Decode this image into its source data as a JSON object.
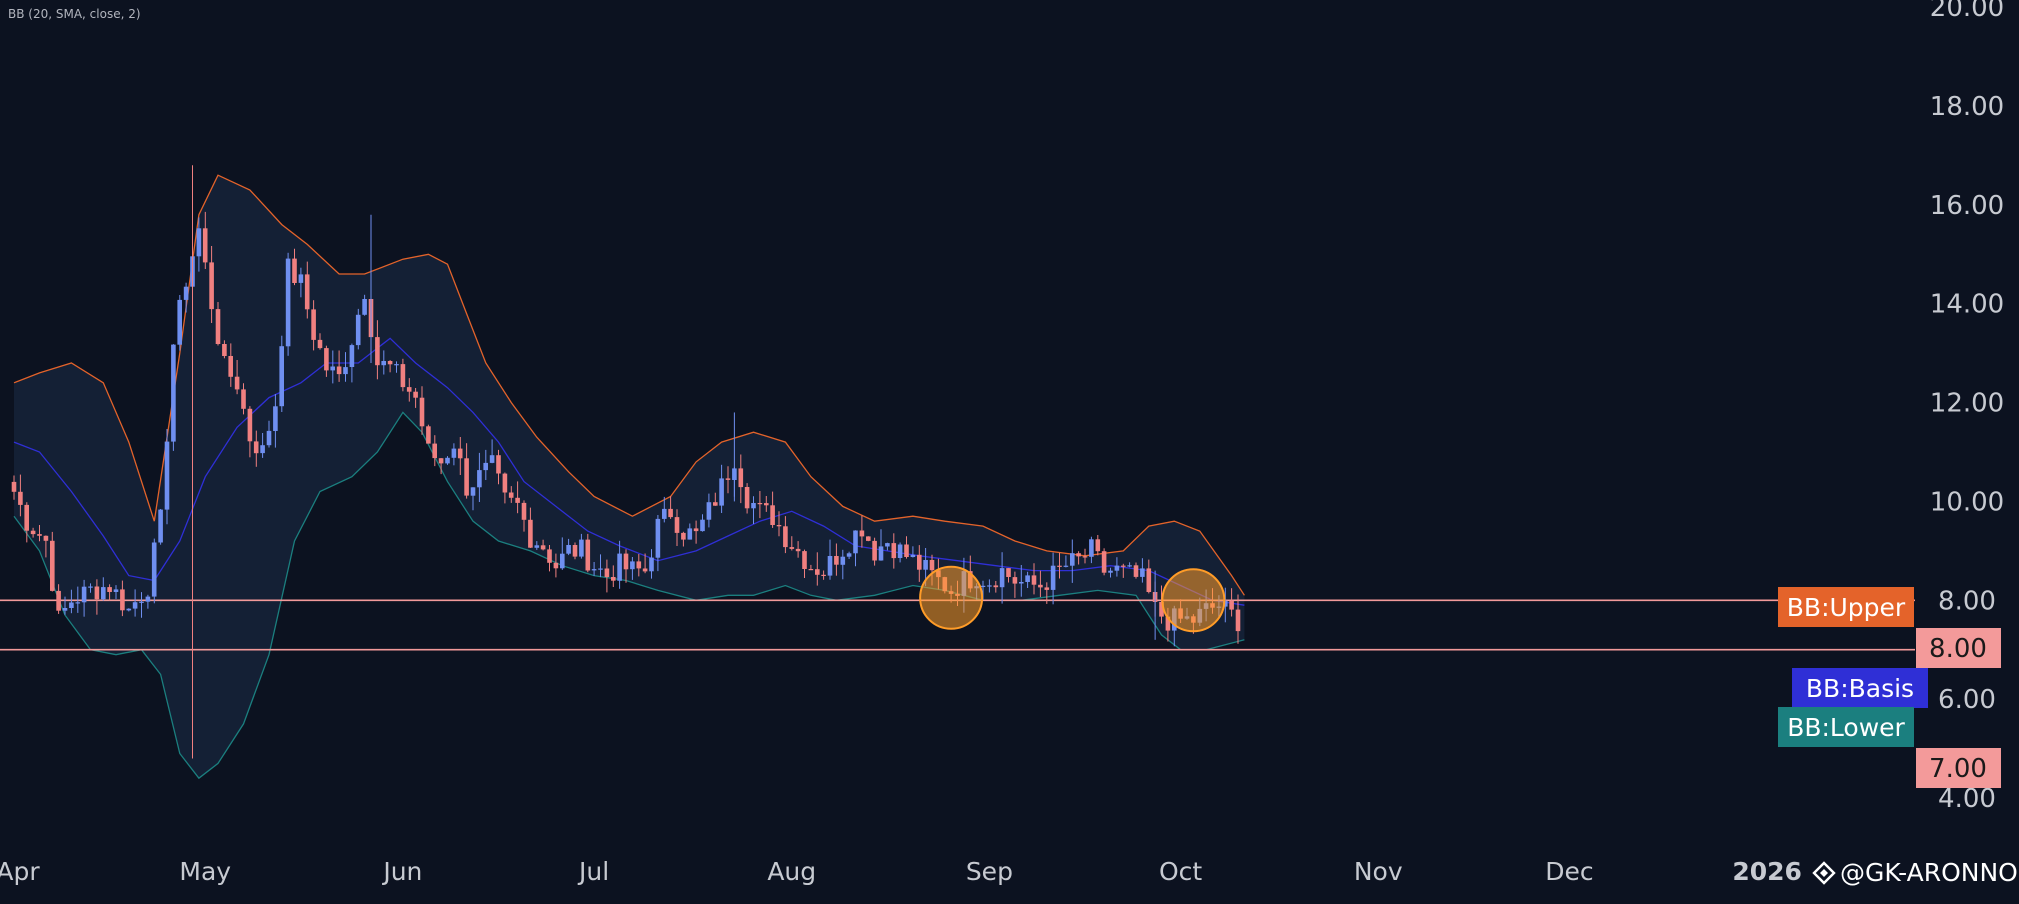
{
  "indicator_label": "BB (20, SMA, close, 2)",
  "watermark": {
    "icon": "diamond-logo-icon",
    "text": "@GK-ARONNO"
  },
  "colors": {
    "background": "#0c1220",
    "up": "#6f8ff0",
    "down": "#f08080",
    "upper_band": "#e4632a",
    "basis": "#2f2fd6",
    "lower_band": "#1b7f7f",
    "band_fill": "#16233a",
    "hline": "#f39a9a",
    "circle": "#ff9c28",
    "axis_text": "#c7cad1"
  },
  "chart_data": {
    "type": "candlestick",
    "ylim": [
      3.5,
      20.5
    ],
    "y_ticks": [
      "20.00",
      "18.00",
      "16.00",
      "14.00",
      "12.00",
      "10.00",
      "8.00",
      "6.00",
      "4.00"
    ],
    "x_ticks": [
      "Apr",
      "May",
      "Jun",
      "Jul",
      "Aug",
      "Sep",
      "Oct",
      "Nov",
      "Dec",
      "2026"
    ],
    "x_range": [
      "2025-04-01",
      "2026-01-19"
    ],
    "horizontal_lines": [
      8.0,
      7.0
    ],
    "price_labels": [
      {
        "text": "8.00",
        "value": 8.0
      },
      {
        "text": "7.00",
        "value": 7.0
      }
    ],
    "band_labels": [
      {
        "name": "BB:Upper",
        "color": "#e4632a"
      },
      {
        "name": "BB:Basis",
        "color": "#2f2fd6"
      },
      {
        "name": "BB:Lower",
        "color": "#1b7f7f"
      }
    ],
    "highlight_circles": [
      {
        "date": "2025-08-26",
        "value": 8.05
      },
      {
        "date": "2025-10-03",
        "value": 8.0
      }
    ],
    "close_path": [
      [
        "2025-04-01",
        10.2
      ],
      [
        "2025-04-03",
        9.6
      ],
      [
        "2025-04-06",
        9.2
      ],
      [
        "2025-04-08",
        7.6
      ],
      [
        "2025-04-10",
        8.0
      ],
      [
        "2025-04-13",
        8.2
      ],
      [
        "2025-04-16",
        8.3
      ],
      [
        "2025-04-19",
        7.8
      ],
      [
        "2025-04-22",
        8.3
      ],
      [
        "2025-04-24",
        9.6
      ],
      [
        "2025-04-26",
        13.2
      ],
      [
        "2025-04-28",
        14.5
      ],
      [
        "2025-04-30",
        15.5
      ],
      [
        "2025-05-02",
        14.0
      ],
      [
        "2025-05-04",
        12.7
      ],
      [
        "2025-05-06",
        12.4
      ],
      [
        "2025-05-08",
        11.3
      ],
      [
        "2025-05-10",
        11.0
      ],
      [
        "2025-05-12",
        12.0
      ],
      [
        "2025-05-14",
        14.7
      ],
      [
        "2025-05-16",
        14.4
      ],
      [
        "2025-05-18",
        13.4
      ],
      [
        "2025-05-20",
        12.7
      ],
      [
        "2025-05-22",
        12.5
      ],
      [
        "2025-05-24",
        13.3
      ],
      [
        "2025-05-26",
        14.3
      ],
      [
        "2025-05-28",
        12.8
      ],
      [
        "2025-05-30",
        12.7
      ],
      [
        "2025-06-01",
        12.4
      ],
      [
        "2025-06-03",
        12.1
      ],
      [
        "2025-06-05",
        11.0
      ],
      [
        "2025-06-07",
        10.8
      ],
      [
        "2025-06-09",
        11.2
      ],
      [
        "2025-06-11",
        10.3
      ],
      [
        "2025-06-13",
        10.5
      ],
      [
        "2025-06-15",
        10.7
      ],
      [
        "2025-06-17",
        10.0
      ],
      [
        "2025-06-19",
        9.9
      ],
      [
        "2025-06-21",
        9.3
      ],
      [
        "2025-06-23",
        9.1
      ],
      [
        "2025-06-25",
        8.7
      ],
      [
        "2025-06-27",
        9.0
      ],
      [
        "2025-06-29",
        9.0
      ],
      [
        "2025-07-01",
        8.7
      ],
      [
        "2025-07-03",
        8.5
      ],
      [
        "2025-07-05",
        8.7
      ],
      [
        "2025-07-07",
        8.6
      ],
      [
        "2025-07-09",
        8.6
      ],
      [
        "2025-07-11",
        9.5
      ],
      [
        "2025-07-13",
        9.8
      ],
      [
        "2025-07-15",
        9.4
      ],
      [
        "2025-07-17",
        9.3
      ],
      [
        "2025-07-19",
        9.8
      ],
      [
        "2025-07-21",
        10.3
      ],
      [
        "2025-07-23",
        10.9
      ],
      [
        "2025-07-25",
        10.1
      ],
      [
        "2025-07-27",
        9.8
      ],
      [
        "2025-07-29",
        9.7
      ],
      [
        "2025-07-31",
        9.3
      ],
      [
        "2025-08-02",
        9.0
      ],
      [
        "2025-08-04",
        8.7
      ],
      [
        "2025-08-06",
        8.6
      ],
      [
        "2025-08-08",
        8.9
      ],
      [
        "2025-08-10",
        9.2
      ],
      [
        "2025-08-12",
        9.5
      ],
      [
        "2025-08-14",
        9.0
      ],
      [
        "2025-08-16",
        9.2
      ],
      [
        "2025-08-18",
        9.0
      ],
      [
        "2025-08-20",
        8.8
      ],
      [
        "2025-08-22",
        8.6
      ],
      [
        "2025-08-24",
        8.4
      ],
      [
        "2025-08-26",
        8.2
      ],
      [
        "2025-08-28",
        8.4
      ],
      [
        "2025-08-30",
        8.5
      ],
      [
        "2025-09-01",
        8.4
      ],
      [
        "2025-09-03",
        8.6
      ],
      [
        "2025-09-05",
        8.4
      ],
      [
        "2025-09-07",
        8.3
      ],
      [
        "2025-09-09",
        8.3
      ],
      [
        "2025-09-11",
        8.5
      ],
      [
        "2025-09-13",
        8.7
      ],
      [
        "2025-09-15",
        8.8
      ],
      [
        "2025-09-17",
        9.0
      ],
      [
        "2025-09-19",
        8.6
      ],
      [
        "2025-09-21",
        8.6
      ],
      [
        "2025-09-23",
        8.5
      ],
      [
        "2025-09-25",
        8.4
      ],
      [
        "2025-09-27",
        7.8
      ],
      [
        "2025-09-29",
        7.6
      ],
      [
        "2025-10-01",
        7.6
      ],
      [
        "2025-10-03",
        7.6
      ],
      [
        "2025-10-05",
        7.8
      ],
      [
        "2025-10-07",
        7.9
      ],
      [
        "2025-10-09",
        7.7
      ],
      [
        "2025-10-11",
        7.5
      ]
    ],
    "upper_band": [
      [
        "2025-04-01",
        12.4
      ],
      [
        "2025-04-05",
        12.6
      ],
      [
        "2025-04-10",
        12.8
      ],
      [
        "2025-04-15",
        12.4
      ],
      [
        "2025-04-19",
        11.2
      ],
      [
        "2025-04-23",
        9.6
      ],
      [
        "2025-04-27",
        13.0
      ],
      [
        "2025-04-30",
        15.8
      ],
      [
        "2025-05-03",
        16.6
      ],
      [
        "2025-05-08",
        16.3
      ],
      [
        "2025-05-13",
        15.6
      ],
      [
        "2025-05-17",
        15.2
      ],
      [
        "2025-05-22",
        14.6
      ],
      [
        "2025-05-26",
        14.6
      ],
      [
        "2025-06-01",
        14.9
      ],
      [
        "2025-06-05",
        15.0
      ],
      [
        "2025-06-08",
        14.8
      ],
      [
        "2025-06-11",
        13.8
      ],
      [
        "2025-06-14",
        12.8
      ],
      [
        "2025-06-18",
        12.0
      ],
      [
        "2025-06-22",
        11.3
      ],
      [
        "2025-06-27",
        10.6
      ],
      [
        "2025-07-01",
        10.1
      ],
      [
        "2025-07-07",
        9.7
      ],
      [
        "2025-07-13",
        10.1
      ],
      [
        "2025-07-17",
        10.8
      ],
      [
        "2025-07-21",
        11.2
      ],
      [
        "2025-07-26",
        11.4
      ],
      [
        "2025-07-31",
        11.2
      ],
      [
        "2025-08-04",
        10.5
      ],
      [
        "2025-08-09",
        9.9
      ],
      [
        "2025-08-14",
        9.6
      ],
      [
        "2025-08-20",
        9.7
      ],
      [
        "2025-08-25",
        9.6
      ],
      [
        "2025-08-31",
        9.5
      ],
      [
        "2025-09-05",
        9.2
      ],
      [
        "2025-09-10",
        9.0
      ],
      [
        "2025-09-16",
        8.9
      ],
      [
        "2025-09-22",
        9.0
      ],
      [
        "2025-09-26",
        9.5
      ],
      [
        "2025-09-30",
        9.6
      ],
      [
        "2025-10-04",
        9.4
      ],
      [
        "2025-10-09",
        8.5
      ],
      [
        "2025-10-11",
        8.1
      ]
    ],
    "basis": [
      [
        "2025-04-01",
        11.2
      ],
      [
        "2025-04-05",
        11.0
      ],
      [
        "2025-04-10",
        10.2
      ],
      [
        "2025-04-15",
        9.3
      ],
      [
        "2025-04-19",
        8.5
      ],
      [
        "2025-04-23",
        8.4
      ],
      [
        "2025-04-27",
        9.2
      ],
      [
        "2025-05-01",
        10.5
      ],
      [
        "2025-05-06",
        11.5
      ],
      [
        "2025-05-11",
        12.1
      ],
      [
        "2025-05-16",
        12.4
      ],
      [
        "2025-05-20",
        12.8
      ],
      [
        "2025-05-25",
        12.8
      ],
      [
        "2025-05-30",
        13.3
      ],
      [
        "2025-06-03",
        12.8
      ],
      [
        "2025-06-08",
        12.3
      ],
      [
        "2025-06-12",
        11.8
      ],
      [
        "2025-06-16",
        11.2
      ],
      [
        "2025-06-20",
        10.4
      ],
      [
        "2025-06-25",
        9.9
      ],
      [
        "2025-06-30",
        9.4
      ],
      [
        "2025-07-05",
        9.1
      ],
      [
        "2025-07-11",
        8.8
      ],
      [
        "2025-07-17",
        9.0
      ],
      [
        "2025-07-22",
        9.3
      ],
      [
        "2025-07-27",
        9.6
      ],
      [
        "2025-08-01",
        9.8
      ],
      [
        "2025-08-06",
        9.5
      ],
      [
        "2025-08-11",
        9.1
      ],
      [
        "2025-08-16",
        9.0
      ],
      [
        "2025-08-21",
        8.9
      ],
      [
        "2025-08-27",
        8.8
      ],
      [
        "2025-09-02",
        8.7
      ],
      [
        "2025-09-08",
        8.6
      ],
      [
        "2025-09-14",
        8.6
      ],
      [
        "2025-09-20",
        8.7
      ],
      [
        "2025-09-26",
        8.6
      ],
      [
        "2025-10-01",
        8.3
      ],
      [
        "2025-10-06",
        8.0
      ],
      [
        "2025-10-11",
        7.9
      ]
    ],
    "lower_band": [
      [
        "2025-04-01",
        9.7
      ],
      [
        "2025-04-05",
        9.0
      ],
      [
        "2025-04-09",
        7.7
      ],
      [
        "2025-04-13",
        7.0
      ],
      [
        "2025-04-17",
        6.9
      ],
      [
        "2025-04-21",
        7.0
      ],
      [
        "2025-04-24",
        6.5
      ],
      [
        "2025-04-27",
        4.9
      ],
      [
        "2025-04-30",
        4.4
      ],
      [
        "2025-05-03",
        4.7
      ],
      [
        "2025-05-07",
        5.5
      ],
      [
        "2025-05-11",
        6.9
      ],
      [
        "2025-05-15",
        9.2
      ],
      [
        "2025-05-19",
        10.2
      ],
      [
        "2025-05-24",
        10.5
      ],
      [
        "2025-05-28",
        11.0
      ],
      [
        "2025-06-01",
        11.8
      ],
      [
        "2025-06-04",
        11.4
      ],
      [
        "2025-06-08",
        10.4
      ],
      [
        "2025-06-12",
        9.6
      ],
      [
        "2025-06-16",
        9.2
      ],
      [
        "2025-06-21",
        9.0
      ],
      [
        "2025-06-26",
        8.7
      ],
      [
        "2025-07-01",
        8.5
      ],
      [
        "2025-07-06",
        8.4
      ],
      [
        "2025-07-11",
        8.2
      ],
      [
        "2025-07-17",
        8.0
      ],
      [
        "2025-07-22",
        8.1
      ],
      [
        "2025-07-26",
        8.1
      ],
      [
        "2025-07-31",
        8.3
      ],
      [
        "2025-08-04",
        8.1
      ],
      [
        "2025-08-08",
        8.0
      ],
      [
        "2025-08-14",
        8.1
      ],
      [
        "2025-08-20",
        8.3
      ],
      [
        "2025-08-25",
        8.2
      ],
      [
        "2025-08-31",
        8.0
      ],
      [
        "2025-09-06",
        8.0
      ],
      [
        "2025-09-12",
        8.1
      ],
      [
        "2025-09-18",
        8.2
      ],
      [
        "2025-09-24",
        8.1
      ],
      [
        "2025-09-28",
        7.3
      ],
      [
        "2025-10-01",
        7.0
      ],
      [
        "2025-10-05",
        7.0
      ],
      [
        "2025-10-11",
        7.2
      ]
    ]
  }
}
